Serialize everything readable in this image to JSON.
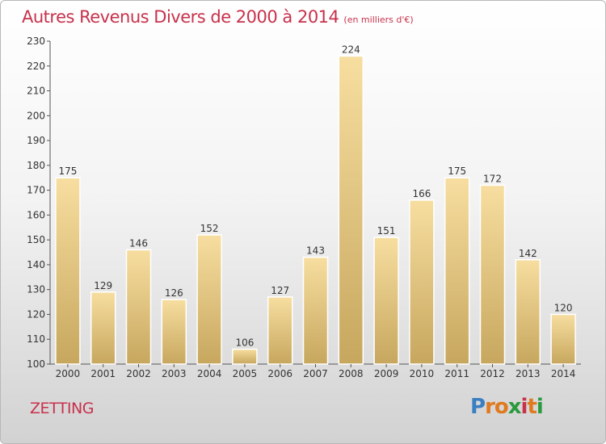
{
  "chart_data": {
    "type": "bar",
    "title": "Autres Revenus Divers de 2000 à 2014",
    "subtitle": "(en milliers d'€)",
    "categories": [
      "2000",
      "2001",
      "2002",
      "2003",
      "2004",
      "2005",
      "2006",
      "2007",
      "2008",
      "2009",
      "2010",
      "2011",
      "2012",
      "2013",
      "2014"
    ],
    "values": [
      175,
      129,
      146,
      126,
      152,
      106,
      127,
      143,
      224,
      151,
      166,
      175,
      172,
      142,
      120
    ],
    "ylim": [
      100,
      230
    ],
    "yticks": [
      100,
      110,
      120,
      130,
      140,
      150,
      160,
      170,
      180,
      190,
      200,
      210,
      220,
      230
    ],
    "grid": false,
    "bar_color_top": "#f7dea0",
    "bar_color_bottom": "#c7a75e"
  },
  "footer": {
    "city": "ZETTING",
    "logo_letters": [
      "P",
      "r",
      "o",
      "x",
      "i",
      "t",
      "i"
    ],
    "logo_colors": [
      "#3a7fc1",
      "#e07a1e",
      "#e07a1e",
      "#2b9a3e",
      "#c8314b",
      "#e07a1e",
      "#2b9a3e"
    ]
  }
}
